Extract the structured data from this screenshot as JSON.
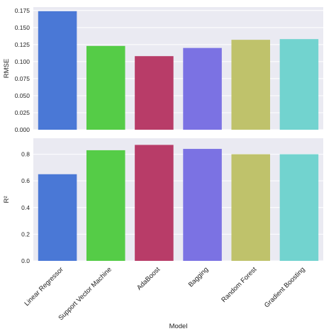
{
  "chart_data": [
    {
      "type": "bar",
      "categories": [
        "Linear Regressor",
        "Support Vector Machine",
        "AdaBoost",
        "Bagging",
        "Random Forest",
        "Gradient Boosting"
      ],
      "values": [
        0.174,
        0.123,
        0.108,
        0.12,
        0.132,
        0.133
      ],
      "ylabel": "RMSE",
      "xlabel": "",
      "ylim": [
        0,
        0.18
      ],
      "yticks": [
        "0.000",
        "0.025",
        "0.050",
        "0.075",
        "0.100",
        "0.125",
        "0.150",
        "0.175"
      ],
      "grid": true,
      "show_x_labels": false
    },
    {
      "type": "bar",
      "categories": [
        "Linear Regressor",
        "Support Vector Machine",
        "AdaBoost",
        "Bagging",
        "Random Forest",
        "Gradient Boosting"
      ],
      "values": [
        0.65,
        0.83,
        0.87,
        0.84,
        0.8,
        0.8
      ],
      "ylabel": "R²",
      "xlabel": "Model",
      "ylim": [
        0,
        0.92
      ],
      "yticks": [
        "0.0",
        "0.2",
        "0.4",
        "0.6",
        "0.8"
      ],
      "grid": true,
      "show_x_labels": true
    }
  ],
  "colors": {
    "bars": [
      "#4a78d6",
      "#55cc47",
      "#b83c68",
      "#7b72e3",
      "#bfc26b",
      "#72d3cf"
    ],
    "panel_background": "#eaeaf2",
    "grid": "#ffffff"
  }
}
